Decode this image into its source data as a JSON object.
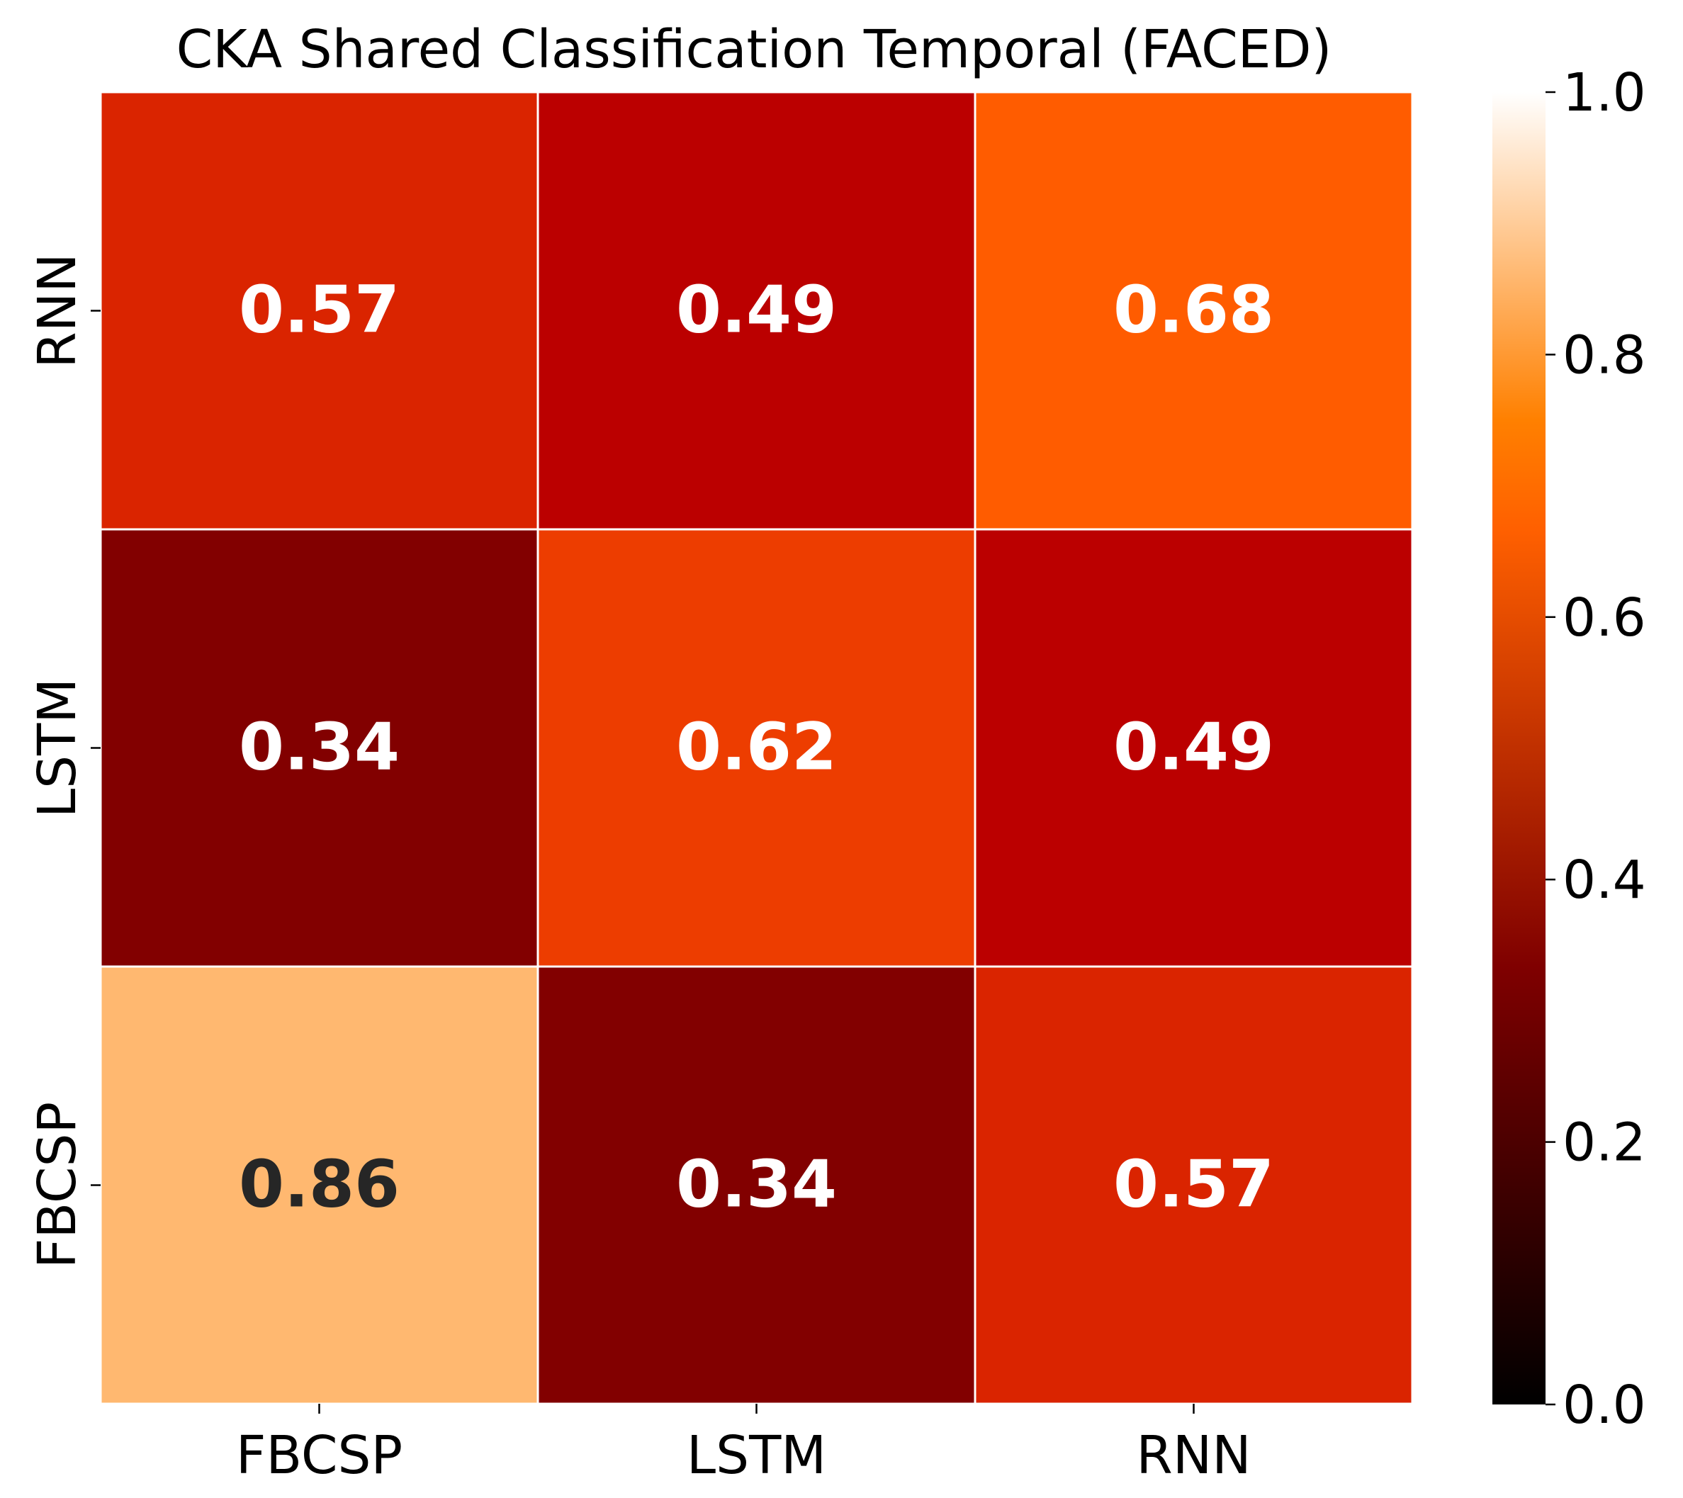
{
  "chart_data": {
    "type": "heatmap",
    "title": "CKA Shared Classification Temporal (FACED)",
    "x_categories": [
      "FBCSP",
      "LSTM",
      "RNN"
    ],
    "y_categories_top_to_bottom": [
      "RNN",
      "LSTM",
      "FBCSP"
    ],
    "values_top_to_bottom": [
      [
        0.57,
        0.49,
        0.68
      ],
      [
        0.34,
        0.62,
        0.49
      ],
      [
        0.86,
        0.34,
        0.57
      ]
    ],
    "value_labels_top_to_bottom": [
      [
        "0.57",
        "0.49",
        "0.68"
      ],
      [
        "0.34",
        "0.62",
        "0.49"
      ],
      [
        "0.86",
        "0.34",
        "0.57"
      ]
    ],
    "colormap": "gist_heat",
    "vmin": 0.0,
    "vmax": 1.0,
    "colorbar_ticks": [
      "0.0",
      "0.2",
      "0.4",
      "0.6",
      "0.8",
      "1.0"
    ],
    "annotation_colors": {
      "light": "#ffffff",
      "dark": "#262626"
    },
    "cell_border_color": "#ffffff",
    "xlabel": "",
    "ylabel": ""
  }
}
